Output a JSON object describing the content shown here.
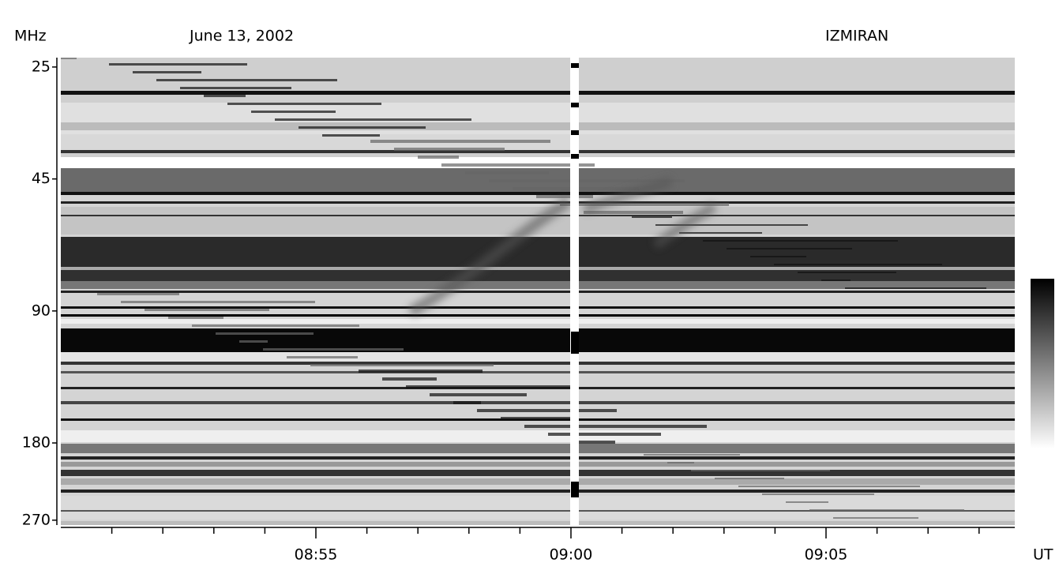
{
  "chart_data": {
    "type": "spectrogram",
    "title": "June 13, 2002",
    "subtitle": "IZMIRAN",
    "y_label": "MHz",
    "x_label": "UT",
    "y_scale": "log",
    "ylim": [
      23.8,
      277
    ],
    "yticks": [
      25,
      45,
      90,
      180,
      270
    ],
    "xlim": [
      530,
      548.7
    ],
    "xticks": [
      {
        "value": 535,
        "label": "08:55"
      },
      {
        "value": 540,
        "label": "09:00"
      },
      {
        "value": 545,
        "label": "09:05"
      }
    ],
    "xminorticks": [
      531,
      532,
      533,
      534,
      536,
      537,
      538,
      539,
      541,
      542,
      543,
      544,
      546,
      547,
      548
    ],
    "colormap": [
      "#ffffff",
      "#000000"
    ]
  }
}
